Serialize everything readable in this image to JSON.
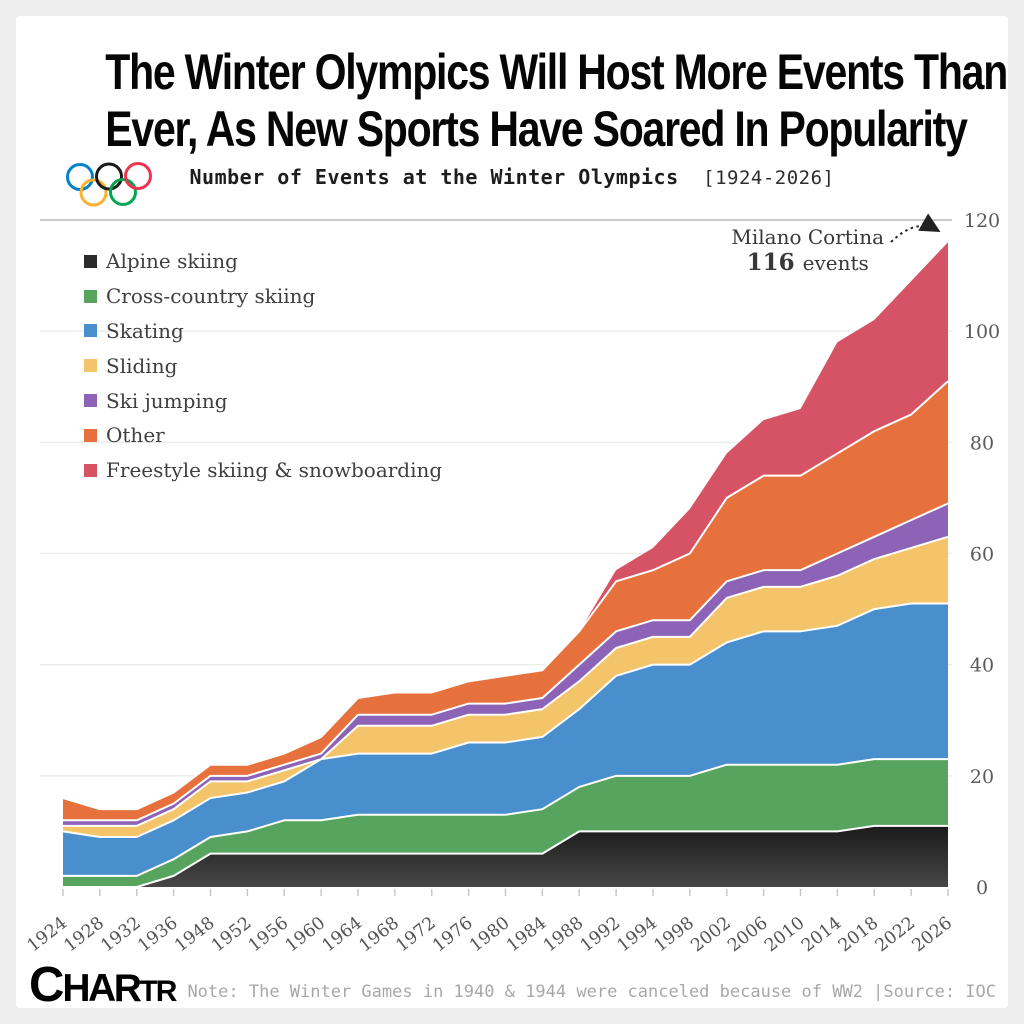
{
  "title": {
    "line1": "The Winter Olympics Will Host More Events Than",
    "line2": "Ever, As New Sports Have Soared In Popularity"
  },
  "subtitle": {
    "main": "Number of Events at the Winter Olympics",
    "range": "[1924-2026]"
  },
  "annotation": {
    "label": "Milano Cortina",
    "value": "116",
    "suffix": "events"
  },
  "footer": {
    "logo_parts": [
      "C",
      "HAR",
      "TR"
    ],
    "note": "Note: The Winter Games in 1940 & 1944 were canceled because of WW2 |Source: IOC"
  },
  "olympic_rings_colors": [
    "#0081C8",
    "#1a1a1a",
    "#EE334E",
    "#FCB131",
    "#00A651"
  ],
  "chart_data": {
    "type": "area",
    "stacked": true,
    "title": "Number of Events at the Winter Olympics [1924-2026]",
    "xlabel": "",
    "ylabel": "",
    "ylim": [
      0,
      120
    ],
    "yticks": [
      0,
      20,
      40,
      60,
      80,
      100,
      120
    ],
    "grid": true,
    "legend_position": "upper left",
    "x": [
      "1924",
      "1928",
      "1932",
      "1936",
      "1948",
      "1952",
      "1956",
      "1960",
      "1964",
      "1968",
      "1972",
      "1976",
      "1980",
      "1984",
      "1988",
      "1992",
      "1994",
      "1998",
      "2002",
      "2006",
      "2010",
      "2014",
      "2018",
      "2022",
      "2026"
    ],
    "series": [
      {
        "name": "Alpine skiing",
        "color": "#2b2b2b",
        "values": [
          0,
          0,
          0,
          2,
          6,
          6,
          6,
          6,
          6,
          6,
          6,
          6,
          6,
          6,
          10,
          10,
          10,
          10,
          10,
          10,
          10,
          10,
          11,
          11,
          11
        ]
      },
      {
        "name": "Cross-country skiing",
        "color": "#57a45f",
        "values": [
          2,
          2,
          2,
          3,
          3,
          4,
          6,
          6,
          7,
          7,
          7,
          7,
          7,
          8,
          8,
          10,
          10,
          10,
          12,
          12,
          12,
          12,
          12,
          12,
          12
        ]
      },
      {
        "name": "Skating",
        "color": "#4a8fcd",
        "values": [
          8,
          7,
          7,
          7,
          7,
          7,
          7,
          11,
          11,
          11,
          11,
          13,
          13,
          13,
          14,
          18,
          20,
          20,
          22,
          24,
          24,
          25,
          27,
          28,
          28
        ]
      },
      {
        "name": "Sliding",
        "color": "#f4c46a",
        "values": [
          1,
          2,
          2,
          2,
          3,
          2,
          2,
          0,
          5,
          5,
          5,
          5,
          5,
          5,
          5,
          5,
          5,
          5,
          8,
          8,
          8,
          9,
          9,
          10,
          12
        ]
      },
      {
        "name": "Ski jumping",
        "color": "#8c63b6",
        "values": [
          1,
          1,
          1,
          1,
          1,
          1,
          1,
          1,
          2,
          2,
          2,
          2,
          2,
          2,
          3,
          3,
          3,
          3,
          3,
          3,
          3,
          4,
          4,
          5,
          6
        ]
      },
      {
        "name": "Other",
        "color": "#e7713d",
        "values": [
          4,
          2,
          2,
          2,
          2,
          2,
          2,
          3,
          3,
          4,
          4,
          4,
          5,
          5,
          6,
          9,
          9,
          12,
          15,
          17,
          17,
          18,
          19,
          19,
          22
        ]
      },
      {
        "name": "Freestyle skiing & snowboarding",
        "color": "#d65365",
        "values": [
          0,
          0,
          0,
          0,
          0,
          0,
          0,
          0,
          0,
          0,
          0,
          0,
          0,
          0,
          0,
          2,
          4,
          8,
          8,
          10,
          12,
          20,
          20,
          24,
          25
        ]
      }
    ],
    "totals": [
      16,
      14,
      14,
      17,
      22,
      22,
      24,
      27,
      34,
      35,
      35,
      37,
      38,
      39,
      46,
      57,
      61,
      68,
      78,
      84,
      86,
      98,
      102,
      109,
      116
    ]
  }
}
